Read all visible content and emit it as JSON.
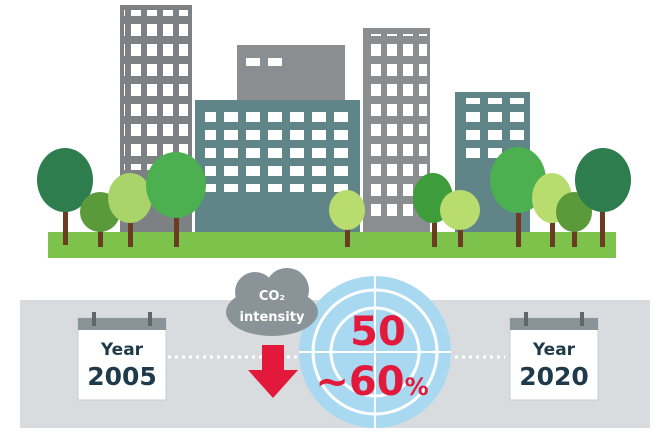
{
  "start": {
    "label": "Year",
    "year": "2005"
  },
  "end": {
    "label": "Year",
    "year": "2020"
  },
  "indicator": {
    "line1": "CO₂",
    "line2": "intensity"
  },
  "reduction": {
    "line1": "50",
    "line2": "~60",
    "unit": "%"
  }
}
